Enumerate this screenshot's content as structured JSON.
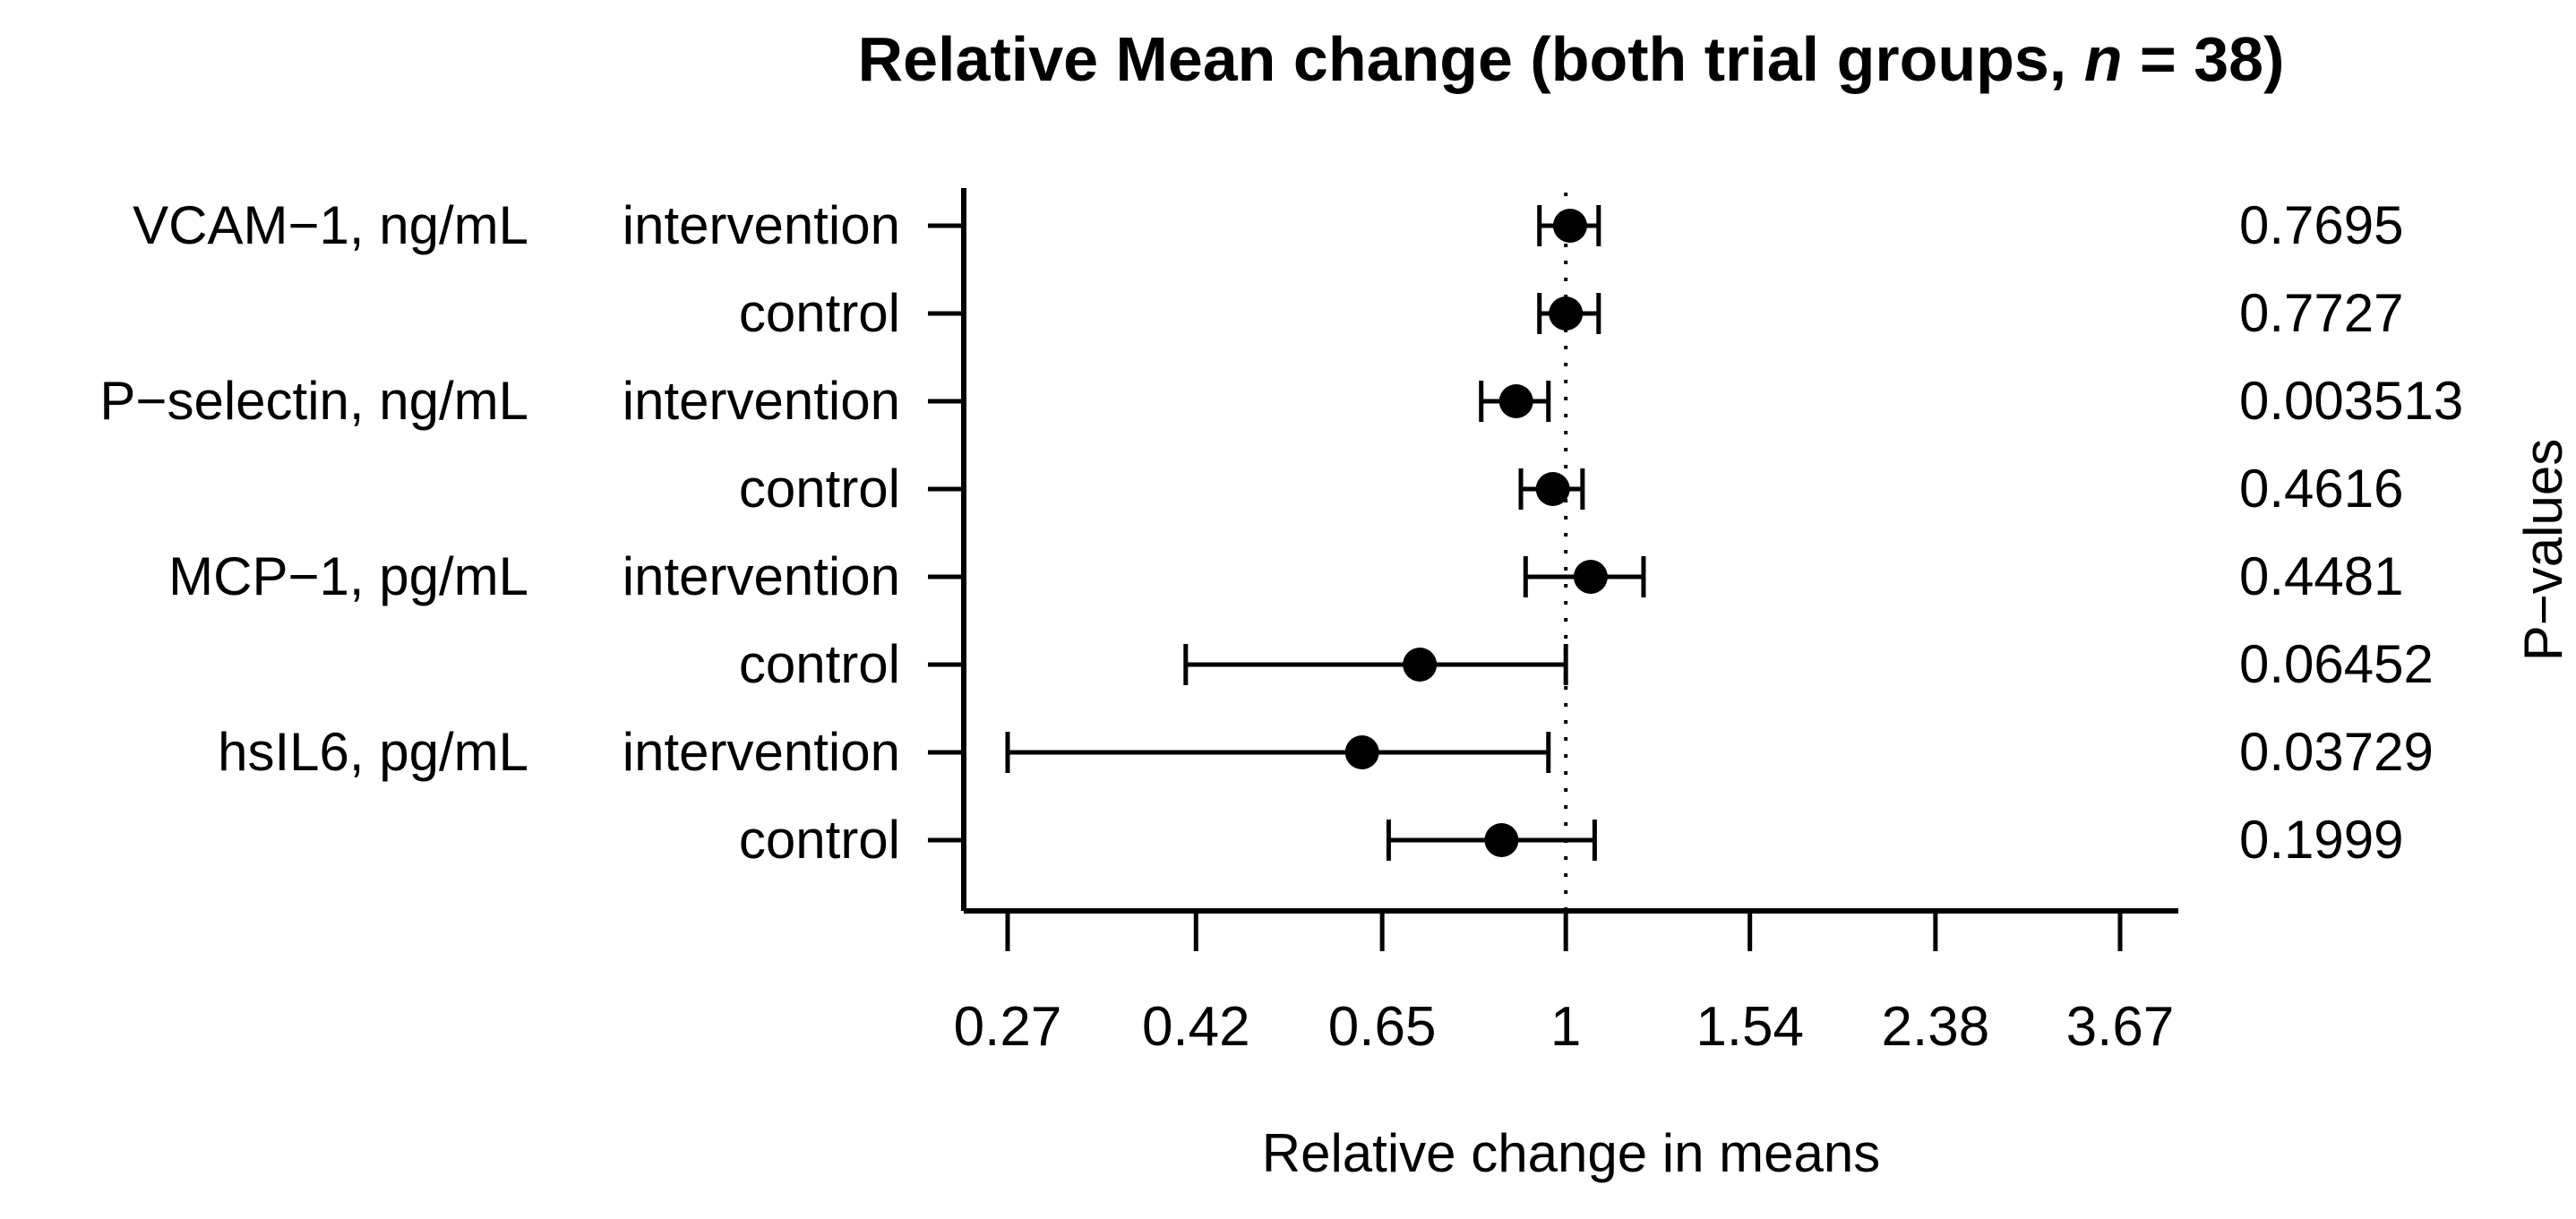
{
  "page": {
    "background": "#ffffff",
    "text_color": "#000000"
  },
  "title": {
    "prefix": "Relative Mean change (both trial groups, ",
    "n": "n",
    "suffix": " = 38)",
    "full": "Relative Mean change (both trial groups, n = 38)"
  },
  "chart_data": {
    "type": "scatter",
    "subtype": "forest-plot-with-error-bars",
    "title": "Relative Mean change (both trial groups, n = 38)",
    "xlabel": "Relative change in means",
    "right_ylabel": "P−values",
    "x_scale": "log",
    "xlim": [
      0.27,
      3.67
    ],
    "x_tick_labels": [
      "0.27",
      "0.42",
      "0.65",
      "1",
      "1.54",
      "2.38",
      "3.67"
    ],
    "x_tick_values": [
      0.27,
      0.42,
      0.65,
      1,
      1.54,
      2.38,
      3.67
    ],
    "reference_line_x": 1,
    "reference_line_style": "dotted",
    "grid": false,
    "legend": "none",
    "marker": {
      "shape": "circle",
      "color": "#000000"
    },
    "rows": [
      {
        "biomarker": "VCAM−1, ng/mL",
        "group": "intervention",
        "mean": 1.01,
        "ci_low": 0.94,
        "ci_high": 1.08,
        "p_value": "0.7695"
      },
      {
        "biomarker": "",
        "group": "control",
        "mean": 1.0,
        "ci_low": 0.94,
        "ci_high": 1.08,
        "p_value": "0.7727"
      },
      {
        "biomarker": "P−selectin, ng/mL",
        "group": "intervention",
        "mean": 0.89,
        "ci_low": 0.82,
        "ci_high": 0.96,
        "p_value": "0.003513"
      },
      {
        "biomarker": "",
        "group": "control",
        "mean": 0.97,
        "ci_low": 0.9,
        "ci_high": 1.04,
        "p_value": "0.4616"
      },
      {
        "biomarker": "MCP−1, pg/mL",
        "group": "intervention",
        "mean": 1.06,
        "ci_low": 0.91,
        "ci_high": 1.2,
        "p_value": "0.4481"
      },
      {
        "biomarker": "",
        "group": "control",
        "mean": 0.71,
        "ci_low": 0.41,
        "ci_high": 1.0,
        "p_value": "0.06452"
      },
      {
        "biomarker": "hsIL6, pg/mL",
        "group": "intervention",
        "mean": 0.62,
        "ci_low": 0.27,
        "ci_high": 0.96,
        "p_value": "0.03729"
      },
      {
        "biomarker": "",
        "group": "control",
        "mean": 0.86,
        "ci_low": 0.66,
        "ci_high": 1.07,
        "p_value": "0.1999"
      }
    ]
  }
}
